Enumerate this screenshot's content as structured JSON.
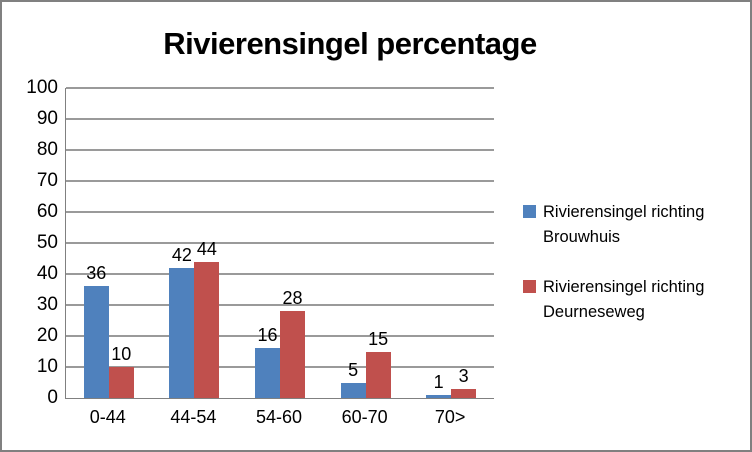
{
  "chart_data": {
    "type": "bar",
    "title": "Rivierensingel percentage",
    "categories": [
      "0-44",
      "44-54",
      "54-60",
      "60-70",
      "70>"
    ],
    "series": [
      {
        "name": "Rivierensingel richting Brouwhuis",
        "color": "#4F81BD",
        "values": [
          36,
          42,
          16,
          5,
          1
        ]
      },
      {
        "name": "Rivierensingel richting Deurneseweg",
        "color": "#C0504D",
        "values": [
          10,
          44,
          28,
          15,
          3
        ]
      }
    ],
    "xlabel": "",
    "ylabel": "",
    "ylim": [
      0,
      100
    ],
    "yticks": [
      0,
      10,
      20,
      30,
      40,
      50,
      60,
      70,
      80,
      90,
      100
    ],
    "grid": true,
    "data_labels": true,
    "legend_position": "right"
  },
  "colors": {
    "series_blue": "#4F81BD",
    "series_red": "#C0504D",
    "gridline": "#9A9A9A",
    "axis_line": "#808080",
    "frame_border": "#808080",
    "background": "#FFFFFF",
    "text": "#000000"
  }
}
